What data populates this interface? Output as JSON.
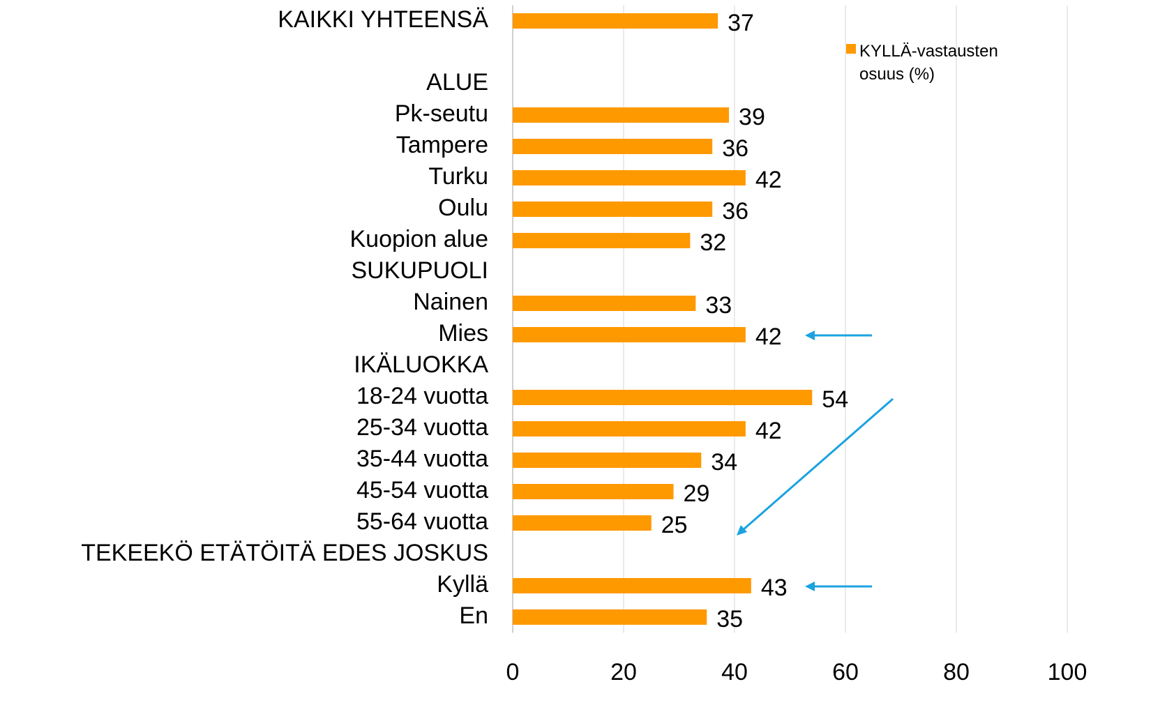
{
  "chart_data": {
    "type": "bar",
    "orientation": "horizontal",
    "categories": [
      "KAIKKI YHTEENSÄ",
      null,
      "ALUE",
      "Pk-seutu",
      "Tampere",
      "Turku",
      "Oulu",
      "Kuopion alue",
      "SUKUPUOLI",
      "Nainen",
      "Mies",
      "IKÄLUOKKA",
      "18-24 vuotta",
      "25-34 vuotta",
      "35-44 vuotta",
      "45-54 vuotta",
      "55-64 vuotta",
      "TEKEEKÖ ETÄTÖITÄ EDES JOSKUS",
      "Kyllä",
      "En"
    ],
    "series": [
      {
        "name": "KYLLÄ-vastausten osuus (%)",
        "color": "#ff9900",
        "values": [
          37,
          null,
          null,
          39,
          36,
          42,
          36,
          32,
          null,
          33,
          42,
          null,
          54,
          42,
          34,
          29,
          25,
          null,
          43,
          35
        ]
      }
    ],
    "xlim": [
      0,
      100
    ],
    "xticks": [
      0,
      20,
      40,
      60,
      80,
      100
    ],
    "grid": true,
    "legend": "top-right"
  }
}
